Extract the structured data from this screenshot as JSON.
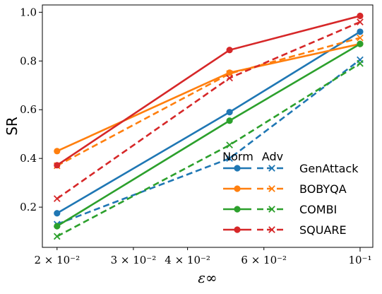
{
  "chart_data": {
    "type": "line",
    "xlabel": "ε∞",
    "ylabel": "SR",
    "xscale": "log",
    "xlim": [
      0.0185,
      0.107
    ],
    "ylim": [
      0.035,
      1.03
    ],
    "x": [
      0.02,
      0.05,
      0.1
    ],
    "xticks": [
      {
        "value": 0.02,
        "label": "2 × 10⁻²"
      },
      {
        "value": 0.03,
        "label": "3 × 10⁻²"
      },
      {
        "value": 0.04,
        "label": "4 × 10⁻²"
      },
      {
        "value": 0.06,
        "label": "6 × 10⁻²"
      },
      {
        "value": 0.1,
        "label": "10⁻¹"
      }
    ],
    "yticks": [
      {
        "value": 0.2,
        "label": "0.2"
      },
      {
        "value": 0.4,
        "label": "0.4"
      },
      {
        "value": 0.6,
        "label": "0.6"
      },
      {
        "value": 0.8,
        "label": "0.8"
      },
      {
        "value": 1.0,
        "label": "1.0"
      }
    ],
    "grid": false,
    "legend": {
      "placement": "lower-right",
      "header_norm": "Norm",
      "header_adv": "Adv",
      "entries": [
        "GenAttack",
        "BOBYQA",
        "COMBI",
        "SQUARE"
      ]
    },
    "series": [
      {
        "name": "GenAttack",
        "kind": "Norm",
        "color": "#1f77b4",
        "values": [
          0.175,
          0.59,
          0.92
        ]
      },
      {
        "name": "GenAttack",
        "kind": "Adv",
        "color": "#1f77b4",
        "values": [
          0.13,
          0.4,
          0.805
        ]
      },
      {
        "name": "BOBYQA",
        "kind": "Norm",
        "color": "#ff7f0e",
        "values": [
          0.43,
          0.752,
          0.87
        ]
      },
      {
        "name": "BOBYQA",
        "kind": "Adv",
        "color": "#ff7f0e",
        "values": [
          0.37,
          0.748,
          0.895
        ]
      },
      {
        "name": "COMBI",
        "kind": "Norm",
        "color": "#2ca02c",
        "values": [
          0.122,
          0.555,
          0.87
        ]
      },
      {
        "name": "COMBI",
        "kind": "Adv",
        "color": "#2ca02c",
        "values": [
          0.08,
          0.455,
          0.79
        ]
      },
      {
        "name": "SQUARE",
        "kind": "Norm",
        "color": "#d62728",
        "values": [
          0.372,
          0.845,
          0.985
        ]
      },
      {
        "name": "SQUARE",
        "kind": "Adv",
        "color": "#d62728",
        "values": [
          0.235,
          0.73,
          0.96
        ]
      }
    ]
  }
}
